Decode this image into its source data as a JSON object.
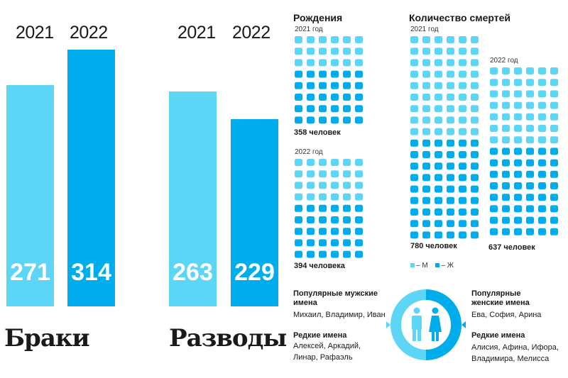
{
  "colors": {
    "light": "#5dd5f7",
    "dark": "#00adec"
  },
  "marriages": {
    "title": "Браки",
    "years": [
      "2021",
      "2022"
    ],
    "values": [
      271,
      314
    ],
    "value_labels": [
      "271",
      "314"
    ]
  },
  "divorces": {
    "title": "Разводы",
    "years": [
      "2021",
      "2022"
    ],
    "values": [
      263,
      229
    ],
    "value_labels": [
      "263",
      "229"
    ]
  },
  "births": {
    "title": "Рождения",
    "y2021_label": "2021 год",
    "y2021_count": "358 человек",
    "y2022_label": "2022 год",
    "y2022_count": "394 человека"
  },
  "deaths": {
    "title": "Количество смертей",
    "y2021_label": "2021 год",
    "y2021_count": "780 человек",
    "y2022_label": "2022 год",
    "y2022_count": "637 человек"
  },
  "legend": {
    "male": "– М",
    "female": "– Ж"
  },
  "names": {
    "male_popular_title": "Популярные мужские имена",
    "male_popular": "Михаил, Владимир, Иван",
    "male_rare_title": "Редкие имена",
    "male_rare": "Алексей, Аркадий, Линар, Рафаэль",
    "female_popular_title": "Популярные женские имена",
    "female_popular": "Ева, София, Арина",
    "female_rare_title": "Редкие имена",
    "female_rare": "Алисия, Афина, Ифора, Владимира, Мелисса"
  },
  "chart_data": [
    {
      "type": "bar",
      "title": "Браки",
      "categories": [
        "2021",
        "2022"
      ],
      "values": [
        271,
        314
      ]
    },
    {
      "type": "bar",
      "title": "Разводы",
      "categories": [
        "2021",
        "2022"
      ],
      "values": [
        263,
        229
      ]
    },
    {
      "type": "table",
      "title": "Рождения",
      "categories": [
        "2021 год",
        "2022 год"
      ],
      "values": [
        358,
        394
      ]
    },
    {
      "type": "table",
      "title": "Количество смертей",
      "categories": [
        "2021 год",
        "2022 год"
      ],
      "values": [
        780,
        637
      ]
    }
  ]
}
